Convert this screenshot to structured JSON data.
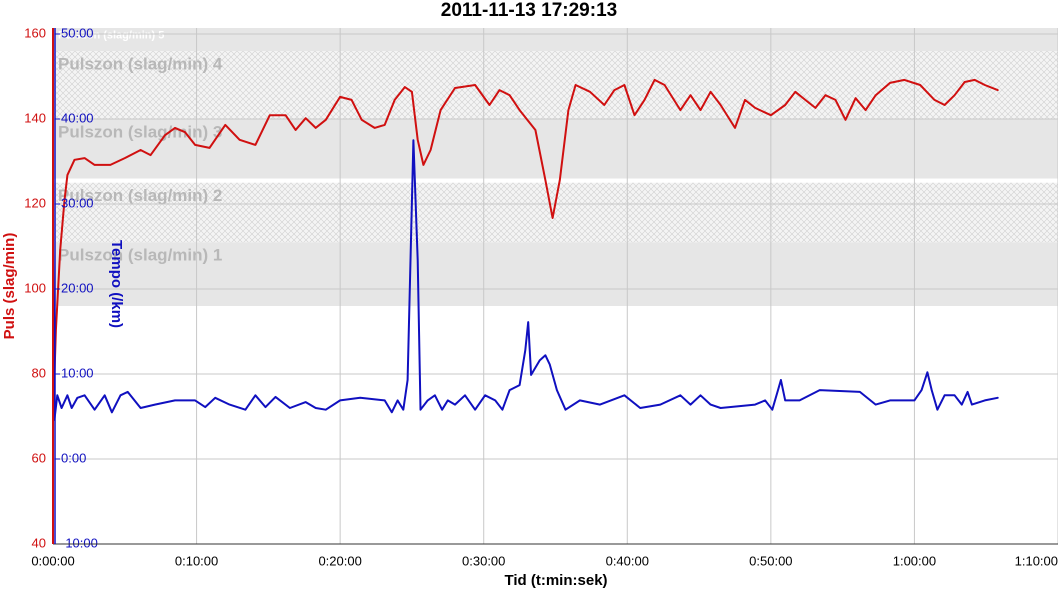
{
  "chart_data": {
    "type": "line",
    "title": "2011-11-13 17:29:13",
    "x_label": "Tid (t:min:sek)",
    "y_label": "Puls (slag/min)",
    "y2_label": "Tempo (/km)",
    "xlim": [
      0,
      70
    ],
    "xticks": [
      {
        "value": 0,
        "label": "0:00:00"
      },
      {
        "value": 10,
        "label": "0:10:00"
      },
      {
        "value": 20,
        "label": "0:20:00"
      },
      {
        "value": 30,
        "label": "0:30:00"
      },
      {
        "value": 40,
        "label": "0:40:00"
      },
      {
        "value": 50,
        "label": "0:50:00"
      },
      {
        "value": 60,
        "label": "1:00:00"
      },
      {
        "value": 70,
        "label": "1:10:00"
      }
    ],
    "ylim": [
      40,
      160
    ],
    "yticks": [
      40,
      60,
      80,
      100,
      120,
      140,
      160
    ],
    "y2lim": [
      -10,
      50
    ],
    "y2ticks": [
      {
        "value": -10,
        "label": "-10:00"
      },
      {
        "value": 0,
        "label": "0:00"
      },
      {
        "value": 10,
        "label": "10:00"
      },
      {
        "value": 20,
        "label": "20:00"
      },
      {
        "value": 30,
        "label": "30:00"
      },
      {
        "value": 40,
        "label": "40:00"
      },
      {
        "value": 50,
        "label": "50:00"
      }
    ],
    "grid": true,
    "zones": [
      {
        "label": "Pulszon (slag/min) 1",
        "range": [
          96,
          111
        ],
        "style": "solid"
      },
      {
        "label": "Pulszon (slag/min) 2",
        "range": [
          111,
          125
        ],
        "style": "hatched"
      },
      {
        "label": "Pulszon (slag/min) 3",
        "range": [
          126,
          140
        ],
        "style": "solid"
      },
      {
        "label": "Pulszon (slag/min) 4",
        "range": [
          140,
          156
        ],
        "style": "hatched"
      },
      {
        "label": "Pulszon (slag/min) 5",
        "range": [
          156,
          162
        ],
        "style": "solid"
      }
    ],
    "series": [
      {
        "name": "Puls (slag/min)",
        "color": "#d01010",
        "axis": "y",
        "x": [
          0,
          0.2,
          0.5,
          0.8,
          1.0,
          1.5,
          2.2,
          2.9,
          4.0,
          5.0,
          6.1,
          6.8,
          7.8,
          8.5,
          9.2,
          9.9,
          10.9,
          12.0,
          13.0,
          14.1,
          15.1,
          16.2,
          16.9,
          17.6,
          18.3,
          19.0,
          20.0,
          20.8,
          21.5,
          22.4,
          23.1,
          23.8,
          24.5,
          25.0,
          25.4,
          25.8,
          26.3,
          27.0,
          28.0,
          29.4,
          30.4,
          31.1,
          31.8,
          32.5,
          33.6,
          34.3,
          34.8,
          35.3,
          35.9,
          36.4,
          37.4,
          38.4,
          39.1,
          39.8,
          40.5,
          41.2,
          41.9,
          42.6,
          43.7,
          44.4,
          45.1,
          45.8,
          46.5,
          47.5,
          48.2,
          48.9,
          50.0,
          51.0,
          51.7,
          52.4,
          53.1,
          53.8,
          54.5,
          55.2,
          55.9,
          56.6,
          57.3,
          58.3,
          59.3,
          60.4,
          61.4,
          62.1,
          62.8,
          63.5,
          64.2,
          64.9,
          65.8
        ],
        "values": [
          69.2,
          90.4,
          109.2,
          120.9,
          126.8,
          130.4,
          130.8,
          129.2,
          129.2,
          130.8,
          132.7,
          131.5,
          136.2,
          137.9,
          136.9,
          133.9,
          133.2,
          138.6,
          135.1,
          133.9,
          140.9,
          140.9,
          137.4,
          140.2,
          137.9,
          139.8,
          145.2,
          144.5,
          139.8,
          137.9,
          138.6,
          144.5,
          147.5,
          146.4,
          135.1,
          129.2,
          132.7,
          142.1,
          147.3,
          148.0,
          143.3,
          146.8,
          145.6,
          142.1,
          137.4,
          125.6,
          116.7,
          125.6,
          142.1,
          148.0,
          146.4,
          143.3,
          146.8,
          148.0,
          140.9,
          144.5,
          149.2,
          148.0,
          142.1,
          145.6,
          142.1,
          146.4,
          143.3,
          137.9,
          144.5,
          142.6,
          140.9,
          143.3,
          146.4,
          144.5,
          142.6,
          145.6,
          144.5,
          139.8,
          144.9,
          142.1,
          145.6,
          148.5,
          149.2,
          148.0,
          144.5,
          143.3,
          145.6,
          148.7,
          149.2,
          148.0,
          146.8
        ]
      },
      {
        "name": "Tempo (/km)",
        "color": "#1010c0",
        "axis": "y2",
        "x": [
          0,
          0.1,
          0.3,
          0.6,
          1.0,
          1.3,
          1.7,
          2.2,
          2.9,
          3.6,
          4.1,
          4.7,
          5.2,
          6.1,
          7.1,
          8.5,
          9.9,
          10.6,
          11.3,
          12.3,
          13.4,
          14.1,
          14.8,
          15.5,
          16.5,
          17.6,
          18.3,
          19.0,
          20.0,
          21.4,
          23.1,
          23.6,
          24.0,
          24.4,
          24.7,
          24.9,
          25.1,
          25.4,
          25.6,
          26.1,
          26.6,
          27.1,
          27.5,
          28.0,
          28.7,
          29.4,
          30.1,
          30.8,
          31.3,
          31.8,
          32.5,
          32.9,
          33.1,
          33.3,
          33.9,
          34.3,
          34.6,
          35.1,
          35.7,
          36.7,
          38.1,
          39.8,
          40.9,
          42.3,
          43.7,
          44.4,
          45.1,
          45.8,
          46.5,
          48.9,
          49.6,
          50.1,
          50.5,
          50.7,
          51.0,
          52.0,
          53.4,
          56.2,
          57.3,
          58.3,
          60.0,
          60.5,
          60.9,
          61.2,
          61.6,
          62.1,
          62.8,
          63.3,
          63.7,
          64.0,
          64.9,
          65.8
        ],
        "values": [
          24.6,
          4.6,
          7.5,
          6.0,
          7.5,
          6.0,
          7.2,
          7.5,
          5.8,
          7.5,
          5.5,
          7.5,
          7.9,
          6.0,
          6.4,
          6.9,
          6.9,
          6.1,
          7.2,
          6.4,
          5.8,
          7.5,
          6.1,
          7.3,
          6.0,
          6.7,
          6.0,
          5.8,
          6.9,
          7.2,
          6.9,
          5.5,
          6.9,
          5.8,
          9.3,
          23.4,
          37.5,
          23.4,
          5.8,
          6.9,
          7.5,
          5.8,
          6.9,
          6.4,
          7.5,
          5.8,
          7.5,
          6.9,
          5.8,
          8.1,
          8.7,
          12.8,
          16.1,
          9.9,
          11.6,
          12.2,
          11.1,
          8.1,
          5.8,
          6.9,
          6.4,
          7.5,
          6.0,
          6.4,
          7.5,
          6.4,
          7.5,
          6.4,
          6.0,
          6.4,
          6.9,
          5.8,
          8.1,
          9.3,
          6.9,
          6.9,
          8.1,
          7.9,
          6.4,
          6.9,
          6.9,
          8.1,
          10.2,
          8.1,
          5.8,
          7.5,
          7.5,
          6.4,
          7.9,
          6.4,
          6.9,
          7.2
        ]
      }
    ]
  }
}
